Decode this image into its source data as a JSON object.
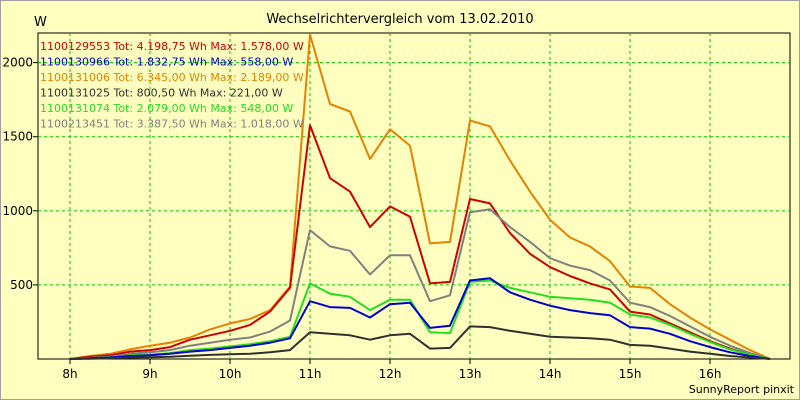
{
  "chart_data": {
    "type": "line",
    "title": "Wechselrichtervergleich vom 13.02.2010",
    "ylabel": "W",
    "xlabel": "",
    "credit": "SunnyReport pinxit",
    "grid": true,
    "legend_position": "top-left",
    "xlim": [
      7.6,
      17.0
    ],
    "ylim": [
      0,
      2200
    ],
    "xticks": [
      {
        "value": 8,
        "label": "8h"
      },
      {
        "value": 9,
        "label": "9h"
      },
      {
        "value": 10,
        "label": "10h"
      },
      {
        "value": 11,
        "label": "11h"
      },
      {
        "value": 12,
        "label": "12h"
      },
      {
        "value": 13,
        "label": "13h"
      },
      {
        "value": 14,
        "label": "14h"
      },
      {
        "value": 15,
        "label": "15h"
      },
      {
        "value": 16,
        "label": "16h"
      }
    ],
    "yticks": [
      {
        "value": 500,
        "label": "500"
      },
      {
        "value": 1000,
        "label": "1000"
      },
      {
        "value": 1500,
        "label": "1500"
      },
      {
        "value": 2000,
        "label": "2000"
      }
    ],
    "x": [
      8.0,
      8.25,
      8.5,
      8.75,
      9.0,
      9.25,
      9.5,
      9.75,
      10.0,
      10.25,
      10.5,
      10.75,
      11.0,
      11.25,
      11.5,
      11.75,
      12.0,
      12.25,
      12.5,
      12.75,
      13.0,
      13.25,
      13.5,
      13.75,
      14.0,
      14.25,
      14.5,
      14.75,
      15.0,
      15.25,
      15.5,
      15.75,
      16.0,
      16.25,
      16.5,
      16.75
    ],
    "series": [
      {
        "name": "1100129553",
        "legend": "1100129553 Tot: 4.198,75 Wh Max: 1.578,00 W",
        "color": "#d00000",
        "values": [
          0,
          15,
          25,
          50,
          60,
          80,
          130,
          160,
          190,
          230,
          320,
          480,
          1578,
          1220,
          1130,
          890,
          1030,
          960,
          510,
          520,
          1080,
          1050,
          850,
          710,
          620,
          560,
          510,
          470,
          320,
          300,
          240,
          180,
          120,
          70,
          30,
          0
        ]
      },
      {
        "name": "1100130966",
        "legend": "1100130966 Tot: 1.832,75 Wh Max: 558,00 W",
        "color": "#0000d0",
        "values": [
          0,
          5,
          10,
          20,
          25,
          35,
          50,
          60,
          75,
          90,
          110,
          140,
          390,
          350,
          345,
          280,
          370,
          380,
          210,
          225,
          530,
          545,
          450,
          400,
          360,
          330,
          310,
          295,
          215,
          205,
          170,
          120,
          80,
          45,
          20,
          0
        ]
      },
      {
        "name": "1100131006",
        "legend": "1100131006 Tot: 6.345,00 Wh Max: 2.189,00 W",
        "color": "#e88000",
        "values": [
          0,
          20,
          35,
          65,
          90,
          110,
          145,
          200,
          240,
          270,
          330,
          490,
          2189,
          1720,
          1670,
          1350,
          1550,
          1440,
          780,
          790,
          1610,
          1570,
          1340,
          1130,
          940,
          820,
          760,
          660,
          490,
          480,
          370,
          280,
          200,
          130,
          60,
          0
        ]
      },
      {
        "name": "1100131025",
        "legend": "1100131025 Tot: 800,50 Wh Max: 221,00 W",
        "color": "#303030",
        "values": [
          0,
          2,
          5,
          10,
          12,
          15,
          22,
          28,
          32,
          35,
          45,
          60,
          180,
          170,
          160,
          130,
          160,
          170,
          70,
          75,
          220,
          215,
          190,
          170,
          150,
          145,
          140,
          130,
          95,
          90,
          70,
          50,
          35,
          20,
          10,
          0
        ]
      },
      {
        "name": "1100131074",
        "legend": "1100131074 Tot: 2.079,00 Wh Max: 548,00 W",
        "color": "#20e020",
        "values": [
          0,
          5,
          12,
          25,
          30,
          40,
          60,
          70,
          85,
          100,
          120,
          150,
          510,
          440,
          420,
          330,
          400,
          400,
          180,
          175,
          520,
          530,
          480,
          450,
          420,
          410,
          400,
          380,
          300,
          280,
          230,
          170,
          115,
          65,
          30,
          0
        ]
      },
      {
        "name": "1100213451",
        "legend": "1100213451 Tot: 3.387,50 Wh Max: 1.018,00 W",
        "color": "#808080",
        "values": [
          0,
          8,
          15,
          35,
          45,
          60,
          90,
          110,
          130,
          145,
          185,
          260,
          870,
          760,
          730,
          570,
          700,
          700,
          390,
          430,
          990,
          1010,
          890,
          790,
          680,
          630,
          600,
          530,
          380,
          350,
          290,
          220,
          150,
          90,
          40,
          0
        ]
      }
    ]
  }
}
